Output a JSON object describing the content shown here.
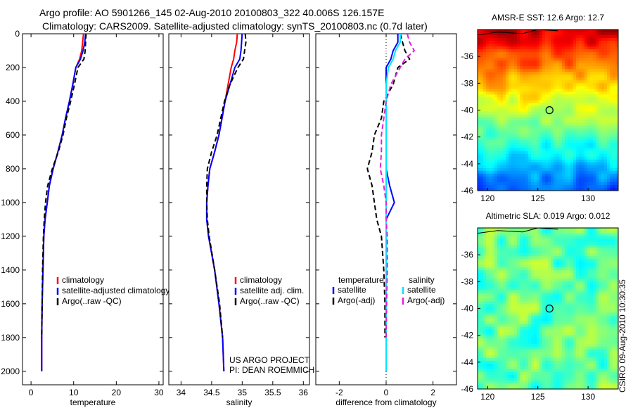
{
  "header": {
    "line1": "Argo profile: AO 5901266_145 02-Aug-2010 20100803_322 40.006S 126.157E",
    "line2": "Climatology: CARS2009. Satellite-adjusted climatology: synTS_20100803.nc (0.7d later)"
  },
  "side_credit": "CSIRO 09-Aug-2010 10:30:35",
  "colors": {
    "climatology": "#ff0000",
    "satellite": "#0000ff",
    "argo": "#000000",
    "salinity_satellite": "#00e5ff",
    "salinity_argo": "#e020e0"
  },
  "chart_data": [
    {
      "type": "line",
      "xlabel": "temperature",
      "ylabel": "",
      "xlim": [
        -2,
        31
      ],
      "ylim": [
        2080,
        0
      ],
      "xticks": [
        0,
        10,
        20,
        30
      ],
      "yticks": [
        0,
        200,
        400,
        600,
        800,
        1000,
        1200,
        1400,
        1600,
        1800,
        2000
      ],
      "legend": {
        "position": "lower-right",
        "entries": [
          "climatology",
          "satellite-adjusted climatology",
          "Argo(..raw -QC)"
        ]
      },
      "series": [
        {
          "name": "climatology",
          "color": "#ff0000",
          "x": [
            12.3,
            12.1,
            11.9,
            11.4,
            10.5,
            9.8,
            9.0,
            8.1,
            7.3,
            6.3,
            5.2,
            4.3,
            3.8,
            3.3,
            3.0,
            2.8,
            2.6,
            2.5,
            2.5
          ],
          "y": [
            0,
            50,
            100,
            150,
            200,
            300,
            400,
            500,
            600,
            700,
            800,
            900,
            1000,
            1100,
            1200,
            1400,
            1600,
            1800,
            2000
          ]
        },
        {
          "name": "satellite-adjusted climatology",
          "color": "#0000ff",
          "x": [
            12.8,
            12.6,
            12.2,
            11.6,
            10.5,
            9.8,
            9.0,
            8.1,
            7.3,
            6.3,
            5.2,
            4.3,
            3.8,
            3.3,
            3.0,
            2.8,
            2.6,
            2.5,
            2.5
          ],
          "y": [
            0,
            50,
            100,
            150,
            200,
            300,
            400,
            500,
            600,
            700,
            800,
            900,
            1000,
            1100,
            1200,
            1400,
            1600,
            1800,
            2000
          ]
        },
        {
          "name": "Argo(..raw -QC)",
          "color": "#000000",
          "dash": true,
          "x": [
            12.9,
            12.8,
            12.7,
            12.4,
            11.0,
            10.2,
            9.3,
            8.3,
            7.5,
            6.4,
            5.0,
            3.9,
            3.4,
            3.1,
            2.9,
            2.7,
            2.6,
            2.5
          ],
          "y": [
            0,
            50,
            100,
            150,
            200,
            300,
            400,
            500,
            600,
            700,
            800,
            900,
            1000,
            1100,
            1200,
            1400,
            1600,
            1800
          ]
        }
      ]
    },
    {
      "type": "line",
      "xlabel": "salinity",
      "ylabel": "",
      "xlim": [
        33.8,
        36.1
      ],
      "ylim": [
        2080,
        0
      ],
      "xticks": [
        34,
        34.5,
        35,
        35.5,
        36
      ],
      "legend": {
        "position": "lower-right",
        "entries": [
          "climatology",
          "satellite adj. clim.",
          "Argo(..raw -QC)"
        ]
      },
      "annotation": [
        "US ARGO PROJECT",
        "PI: DEAN ROEMMICH"
      ],
      "series": [
        {
          "name": "climatology",
          "color": "#ff0000",
          "x": [
            34.92,
            34.91,
            34.88,
            34.86,
            34.82,
            34.77,
            34.72,
            34.67,
            34.62,
            34.55,
            34.47,
            34.44,
            34.42,
            34.42,
            34.45,
            34.55,
            34.62,
            34.68,
            34.7
          ],
          "y": [
            0,
            50,
            100,
            150,
            200,
            300,
            400,
            500,
            600,
            700,
            800,
            900,
            1000,
            1100,
            1200,
            1400,
            1600,
            1800,
            2000
          ]
        },
        {
          "name": "satellite adj. clim.",
          "color": "#0000ff",
          "x": [
            35.0,
            34.99,
            34.98,
            34.96,
            34.88,
            34.8,
            34.72,
            34.67,
            34.62,
            34.55,
            34.47,
            34.44,
            34.42,
            34.42,
            34.45,
            34.55,
            34.62,
            34.68,
            34.7
          ],
          "y": [
            0,
            50,
            100,
            150,
            200,
            300,
            400,
            500,
            600,
            700,
            800,
            900,
            1000,
            1100,
            1200,
            1400,
            1600,
            1800,
            2000
          ]
        },
        {
          "name": "Argo(..raw -QC)",
          "color": "#000000",
          "dash": true,
          "x": [
            35.05,
            35.06,
            35.04,
            35.02,
            34.93,
            34.8,
            34.71,
            34.65,
            34.59,
            34.5,
            34.43,
            34.42,
            34.42,
            34.43,
            34.46,
            34.55,
            34.63,
            34.68
          ],
          "y": [
            0,
            50,
            100,
            150,
            200,
            300,
            400,
            500,
            600,
            700,
            800,
            900,
            1000,
            1100,
            1200,
            1400,
            1600,
            1800
          ]
        }
      ]
    },
    {
      "type": "line",
      "xlabel": "difference from climatology",
      "ylabel": "",
      "xlim": [
        -3,
        3
      ],
      "ylim": [
        2080,
        0
      ],
      "xticks": [
        -2,
        0,
        2
      ],
      "legend": {
        "position": "lower-right",
        "columns": [
          {
            "title": "temperature",
            "entries": [
              "satellite",
              "Argo(-adj)"
            ]
          },
          {
            "title": "salinity",
            "entries": [
              "satellite",
              "Argo(-adj)"
            ]
          }
        ]
      },
      "series": [
        {
          "name": "temperature satellite",
          "color": "#0000ff",
          "x": [
            0.5,
            0.5,
            0.3,
            0.2,
            0.0,
            0.0,
            0.0,
            0.0,
            0.0,
            0.0,
            0.0,
            0.15,
            0.35,
            0.0,
            0.0,
            0.0,
            0.0,
            0.0,
            0.0
          ],
          "y": [
            0,
            50,
            100,
            150,
            200,
            300,
            400,
            500,
            600,
            700,
            800,
            900,
            1000,
            1100,
            1200,
            1400,
            1600,
            1800,
            2000
          ]
        },
        {
          "name": "temperature Argo(-adj)",
          "color": "#000000",
          "dash": true,
          "x": [
            0.6,
            0.7,
            0.8,
            1.0,
            0.5,
            0.3,
            -0.1,
            -0.2,
            -0.5,
            -0.6,
            -0.8,
            -0.6,
            -0.5,
            -0.4,
            -0.2,
            -0.1,
            -0.05,
            -0.05
          ],
          "y": [
            0,
            50,
            100,
            150,
            200,
            300,
            400,
            500,
            600,
            700,
            800,
            900,
            1000,
            1100,
            1200,
            1400,
            1600,
            1800
          ]
        },
        {
          "name": "salinity satellite",
          "color": "#00e5ff",
          "x": [
            0.6,
            0.6,
            0.4,
            0.3,
            0.1,
            0.0,
            0.0,
            0.0,
            0.0,
            0.0,
            0.0,
            0.0,
            0.0,
            0.0,
            0.0,
            0.0,
            0.0,
            0.0,
            0.0
          ],
          "y": [
            0,
            50,
            100,
            150,
            200,
            300,
            400,
            500,
            600,
            700,
            800,
            900,
            1000,
            1100,
            1200,
            1400,
            1600,
            1800,
            2000
          ]
        },
        {
          "name": "salinity Argo(-adj)",
          "color": "#e020e0",
          "dash": true,
          "x": [
            0.9,
            1.0,
            1.2,
            0.8,
            0.6,
            0.2,
            0.0,
            -0.1,
            -0.2,
            -0.2,
            -0.25,
            -0.1,
            0.0,
            0.0,
            0.05,
            0.05,
            0.02,
            0.0
          ],
          "y": [
            0,
            50,
            100,
            150,
            200,
            300,
            400,
            500,
            600,
            700,
            800,
            900,
            1000,
            1100,
            1200,
            1400,
            1600,
            1800
          ]
        }
      ]
    },
    {
      "type": "heatmap",
      "title": "AMSR-E SST: 12.6 Argo: 12.7",
      "xlim": [
        119,
        133
      ],
      "ylim": [
        -46,
        -34
      ],
      "xticks": [
        120,
        125,
        130
      ],
      "yticks": [
        -36,
        -38,
        -40,
        -42,
        -44,
        -46
      ],
      "marker": {
        "lon": 126.157,
        "lat": -40.006
      },
      "colormap": "jet"
    },
    {
      "type": "heatmap",
      "title": "Altimetric SLA: 0.019 Argo: 0.012",
      "xlim": [
        119,
        133
      ],
      "ylim": [
        -46,
        -34
      ],
      "xticks": [
        120,
        125,
        130
      ],
      "yticks": [
        -36,
        -38,
        -40,
        -42,
        -44,
        -46
      ],
      "marker": {
        "lon": 126.157,
        "lat": -40.006
      },
      "colormap": "jet"
    }
  ]
}
